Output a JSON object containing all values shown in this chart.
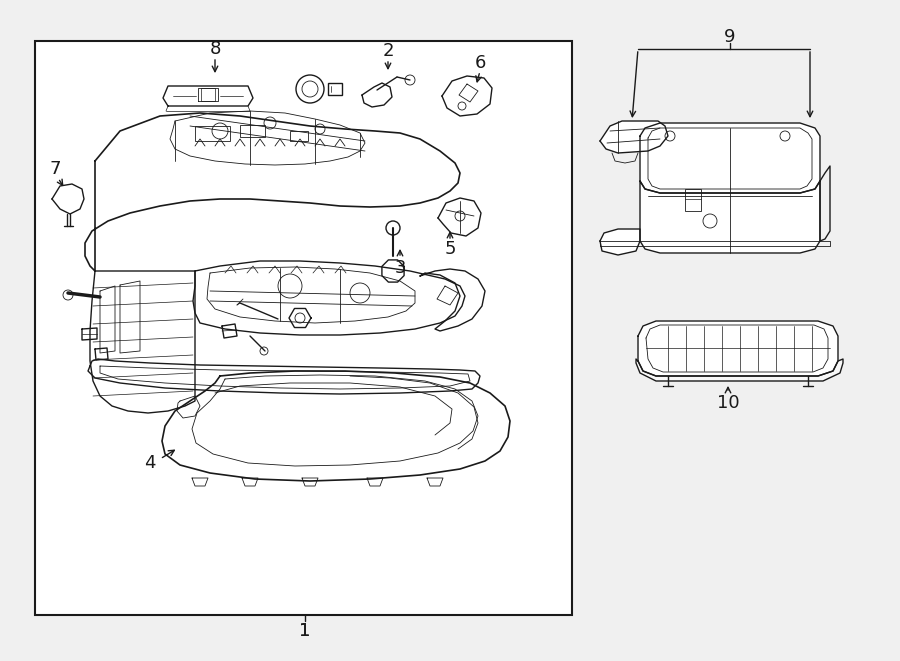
{
  "bg_color": "#f0f0f0",
  "line_color": "#1a1a1a",
  "fig_width": 9.0,
  "fig_height": 6.61,
  "dpi": 100,
  "font_size": 12,
  "box_color": "#ffffff"
}
